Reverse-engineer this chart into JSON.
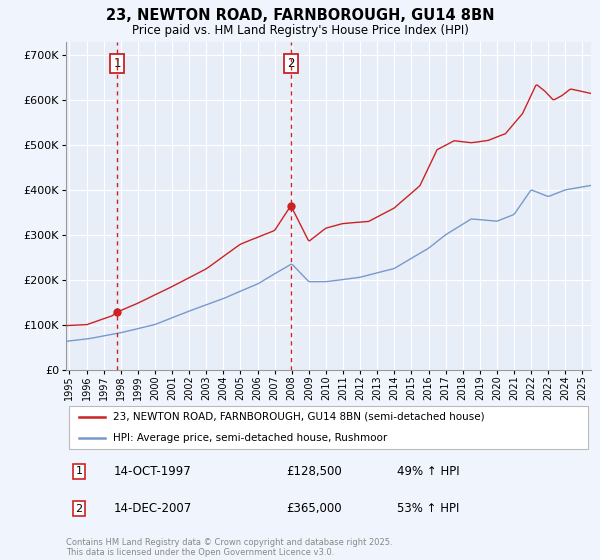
{
  "title": "23, NEWTON ROAD, FARNBOROUGH, GU14 8BN",
  "subtitle": "Price paid vs. HM Land Registry's House Price Index (HPI)",
  "ytick_vals": [
    0,
    100000,
    200000,
    300000,
    400000,
    500000,
    600000,
    700000
  ],
  "ylim": [
    0,
    730000
  ],
  "xlim_start": 1994.8,
  "xlim_end": 2025.5,
  "bg_color": "#f0f4fc",
  "plot_bg": "#e8eef8",
  "grid_color": "#ffffff",
  "red_color": "#cc2222",
  "blue_color": "#7799cc",
  "transaction1": {
    "year": 1997.79,
    "price": 128500,
    "label": "1"
  },
  "transaction2": {
    "year": 2007.95,
    "price": 365000,
    "label": "2"
  },
  "legend_line1": "23, NEWTON ROAD, FARNBOROUGH, GU14 8BN (semi-detached house)",
  "legend_line2": "HPI: Average price, semi-detached house, Rushmoor",
  "table": [
    {
      "num": "1",
      "date": "14-OCT-1997",
      "price": "£128,500",
      "pct": "49% ↑ HPI"
    },
    {
      "num": "2",
      "date": "14-DEC-2007",
      "price": "£365,000",
      "pct": "53% ↑ HPI"
    }
  ],
  "copyright": "Contains HM Land Registry data © Crown copyright and database right 2025.\nThis data is licensed under the Open Government Licence v3.0.",
  "xtick_years": [
    1995,
    1996,
    1997,
    1998,
    1999,
    2000,
    2001,
    2002,
    2003,
    2004,
    2005,
    2006,
    2007,
    2008,
    2009,
    2010,
    2011,
    2012,
    2013,
    2014,
    2015,
    2016,
    2017,
    2018,
    2019,
    2020,
    2021,
    2022,
    2023,
    2024,
    2025
  ],
  "hpi_waypoints_x": [
    1994.8,
    1996.0,
    1998.0,
    2000.0,
    2002.0,
    2004.0,
    2006.0,
    2008.0,
    2009.0,
    2010.0,
    2012.0,
    2014.0,
    2016.0,
    2017.0,
    2018.5,
    2020.0,
    2021.0,
    2022.0,
    2023.0,
    2024.0,
    2025.5
  ],
  "hpi_waypoints_y": [
    63000,
    68000,
    82000,
    100000,
    130000,
    158000,
    190000,
    235000,
    195000,
    195000,
    205000,
    225000,
    270000,
    300000,
    335000,
    330000,
    345000,
    400000,
    385000,
    400000,
    410000
  ],
  "prop_waypoints_x": [
    1994.8,
    1996.0,
    1997.5,
    1997.79,
    1999.0,
    2001.0,
    2003.0,
    2005.0,
    2007.0,
    2007.95,
    2009.0,
    2010.0,
    2011.0,
    2012.5,
    2014.0,
    2015.5,
    2016.5,
    2017.5,
    2018.5,
    2019.5,
    2020.5,
    2021.5,
    2022.3,
    2022.8,
    2023.3,
    2023.8,
    2024.3,
    2025.5
  ],
  "prop_waypoints_y": [
    98000,
    100000,
    120000,
    128500,
    148000,
    185000,
    225000,
    280000,
    310000,
    365000,
    285000,
    315000,
    325000,
    330000,
    360000,
    410000,
    490000,
    510000,
    505000,
    510000,
    525000,
    570000,
    635000,
    620000,
    600000,
    610000,
    625000,
    615000
  ]
}
